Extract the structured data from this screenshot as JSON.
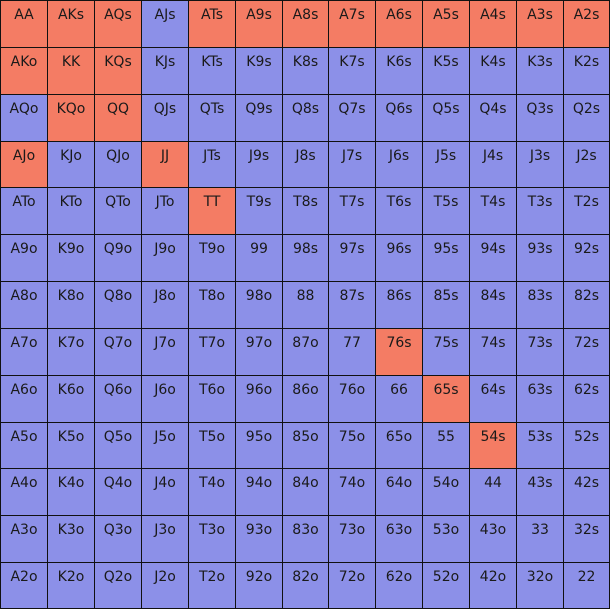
{
  "grid": {
    "rows": [
      [
        {
          "label": "AA",
          "color": "#f47c64"
        },
        {
          "label": "AKs",
          "color": "#f47c64"
        },
        {
          "label": "AQs",
          "color": "#f47c64"
        },
        {
          "label": "AJs",
          "color": "#8c90e8"
        },
        {
          "label": "ATs",
          "color": "#f47c64"
        },
        {
          "label": "A9s",
          "color": "#f47c64"
        },
        {
          "label": "A8s",
          "color": "#f47c64"
        },
        {
          "label": "A7s",
          "color": "#f47c64"
        },
        {
          "label": "A6s",
          "color": "#f47c64"
        },
        {
          "label": "A5s",
          "color": "#f47c64"
        },
        {
          "label": "A4s",
          "color": "#f47c64"
        },
        {
          "label": "A3s",
          "color": "#f47c64"
        },
        {
          "label": "A2s",
          "color": "#f47c64"
        }
      ],
      [
        {
          "label": "AKo",
          "color": "#f47c64"
        },
        {
          "label": "KK",
          "color": "#f47c64"
        },
        {
          "label": "KQs",
          "color": "#f47c64"
        },
        {
          "label": "KJs",
          "color": "#8c90e8"
        },
        {
          "label": "KTs",
          "color": "#8c90e8"
        },
        {
          "label": "K9s",
          "color": "#8c90e8"
        },
        {
          "label": "K8s",
          "color": "#8c90e8"
        },
        {
          "label": "K7s",
          "color": "#8c90e8"
        },
        {
          "label": "K6s",
          "color": "#8c90e8"
        },
        {
          "label": "K5s",
          "color": "#8c90e8"
        },
        {
          "label": "K4s",
          "color": "#8c90e8"
        },
        {
          "label": "K3s",
          "color": "#8c90e8"
        },
        {
          "label": "K2s",
          "color": "#8c90e8"
        }
      ],
      [
        {
          "label": "AQo",
          "color": "#8c90e8"
        },
        {
          "label": "KQo",
          "color": "#f47c64"
        },
        {
          "label": "QQ",
          "color": "#f47c64"
        },
        {
          "label": "QJs",
          "color": "#8c90e8"
        },
        {
          "label": "QTs",
          "color": "#8c90e8"
        },
        {
          "label": "Q9s",
          "color": "#8c90e8"
        },
        {
          "label": "Q8s",
          "color": "#8c90e8"
        },
        {
          "label": "Q7s",
          "color": "#8c90e8"
        },
        {
          "label": "Q6s",
          "color": "#8c90e8"
        },
        {
          "label": "Q5s",
          "color": "#8c90e8"
        },
        {
          "label": "Q4s",
          "color": "#8c90e8"
        },
        {
          "label": "Q3s",
          "color": "#8c90e8"
        },
        {
          "label": "Q2s",
          "color": "#8c90e8"
        }
      ],
      [
        {
          "label": "AJo",
          "color": "#f47c64"
        },
        {
          "label": "KJo",
          "color": "#8c90e8"
        },
        {
          "label": "QJo",
          "color": "#8c90e8"
        },
        {
          "label": "JJ",
          "color": "#f47c64"
        },
        {
          "label": "JTs",
          "color": "#8c90e8"
        },
        {
          "label": "J9s",
          "color": "#8c90e8"
        },
        {
          "label": "J8s",
          "color": "#8c90e8"
        },
        {
          "label": "J7s",
          "color": "#8c90e8"
        },
        {
          "label": "J6s",
          "color": "#8c90e8"
        },
        {
          "label": "J5s",
          "color": "#8c90e8"
        },
        {
          "label": "J4s",
          "color": "#8c90e8"
        },
        {
          "label": "J3s",
          "color": "#8c90e8"
        },
        {
          "label": "J2s",
          "color": "#8c90e8"
        }
      ],
      [
        {
          "label": "ATo",
          "color": "#8c90e8"
        },
        {
          "label": "KTo",
          "color": "#8c90e8"
        },
        {
          "label": "QTo",
          "color": "#8c90e8"
        },
        {
          "label": "JTo",
          "color": "#8c90e8"
        },
        {
          "label": "TT",
          "color": "#f47c64"
        },
        {
          "label": "T9s",
          "color": "#8c90e8"
        },
        {
          "label": "T8s",
          "color": "#8c90e8"
        },
        {
          "label": "T7s",
          "color": "#8c90e8"
        },
        {
          "label": "T6s",
          "color": "#8c90e8"
        },
        {
          "label": "T5s",
          "color": "#8c90e8"
        },
        {
          "label": "T4s",
          "color": "#8c90e8"
        },
        {
          "label": "T3s",
          "color": "#8c90e8"
        },
        {
          "label": "T2s",
          "color": "#8c90e8"
        }
      ],
      [
        {
          "label": "A9o",
          "color": "#8c90e8"
        },
        {
          "label": "K9o",
          "color": "#8c90e8"
        },
        {
          "label": "Q9o",
          "color": "#8c90e8"
        },
        {
          "label": "J9o",
          "color": "#8c90e8"
        },
        {
          "label": "T9o",
          "color": "#8c90e8"
        },
        {
          "label": "99",
          "color": "#8c90e8"
        },
        {
          "label": "98s",
          "color": "#8c90e8"
        },
        {
          "label": "97s",
          "color": "#8c90e8"
        },
        {
          "label": "96s",
          "color": "#8c90e8"
        },
        {
          "label": "95s",
          "color": "#8c90e8"
        },
        {
          "label": "94s",
          "color": "#8c90e8"
        },
        {
          "label": "93s",
          "color": "#8c90e8"
        },
        {
          "label": "92s",
          "color": "#8c90e8"
        }
      ],
      [
        {
          "label": "A8o",
          "color": "#8c90e8"
        },
        {
          "label": "K8o",
          "color": "#8c90e8"
        },
        {
          "label": "Q8o",
          "color": "#8c90e8"
        },
        {
          "label": "J8o",
          "color": "#8c90e8"
        },
        {
          "label": "T8o",
          "color": "#8c90e8"
        },
        {
          "label": "98o",
          "color": "#8c90e8"
        },
        {
          "label": "88",
          "color": "#8c90e8"
        },
        {
          "label": "87s",
          "color": "#8c90e8"
        },
        {
          "label": "86s",
          "color": "#8c90e8"
        },
        {
          "label": "85s",
          "color": "#8c90e8"
        },
        {
          "label": "84s",
          "color": "#8c90e8"
        },
        {
          "label": "83s",
          "color": "#8c90e8"
        },
        {
          "label": "82s",
          "color": "#8c90e8"
        }
      ],
      [
        {
          "label": "A7o",
          "color": "#8c90e8"
        },
        {
          "label": "K7o",
          "color": "#8c90e8"
        },
        {
          "label": "Q7o",
          "color": "#8c90e8"
        },
        {
          "label": "J7o",
          "color": "#8c90e8"
        },
        {
          "label": "T7o",
          "color": "#8c90e8"
        },
        {
          "label": "97o",
          "color": "#8c90e8"
        },
        {
          "label": "87o",
          "color": "#8c90e8"
        },
        {
          "label": "77",
          "color": "#8c90e8"
        },
        {
          "label": "76s",
          "color": "#f47c64"
        },
        {
          "label": "75s",
          "color": "#8c90e8"
        },
        {
          "label": "74s",
          "color": "#8c90e8"
        },
        {
          "label": "73s",
          "color": "#8c90e8"
        },
        {
          "label": "72s",
          "color": "#8c90e8"
        }
      ],
      [
        {
          "label": "A6o",
          "color": "#8c90e8"
        },
        {
          "label": "K6o",
          "color": "#8c90e8"
        },
        {
          "label": "Q6o",
          "color": "#8c90e8"
        },
        {
          "label": "J6o",
          "color": "#8c90e8"
        },
        {
          "label": "T6o",
          "color": "#8c90e8"
        },
        {
          "label": "96o",
          "color": "#8c90e8"
        },
        {
          "label": "86o",
          "color": "#8c90e8"
        },
        {
          "label": "76o",
          "color": "#8c90e8"
        },
        {
          "label": "66",
          "color": "#8c90e8"
        },
        {
          "label": "65s",
          "color": "#f47c64"
        },
        {
          "label": "64s",
          "color": "#8c90e8"
        },
        {
          "label": "63s",
          "color": "#8c90e8"
        },
        {
          "label": "62s",
          "color": "#8c90e8"
        }
      ],
      [
        {
          "label": "A5o",
          "color": "#8c90e8"
        },
        {
          "label": "K5o",
          "color": "#8c90e8"
        },
        {
          "label": "Q5o",
          "color": "#8c90e8"
        },
        {
          "label": "J5o",
          "color": "#8c90e8"
        },
        {
          "label": "T5o",
          "color": "#8c90e8"
        },
        {
          "label": "95o",
          "color": "#8c90e8"
        },
        {
          "label": "85o",
          "color": "#8c90e8"
        },
        {
          "label": "75o",
          "color": "#8c90e8"
        },
        {
          "label": "65o",
          "color": "#8c90e8"
        },
        {
          "label": "55",
          "color": "#8c90e8"
        },
        {
          "label": "54s",
          "color": "#f47c64"
        },
        {
          "label": "53s",
          "color": "#8c90e8"
        },
        {
          "label": "52s",
          "color": "#8c90e8"
        }
      ],
      [
        {
          "label": "A4o",
          "color": "#8c90e8"
        },
        {
          "label": "K4o",
          "color": "#8c90e8"
        },
        {
          "label": "Q4o",
          "color": "#8c90e8"
        },
        {
          "label": "J4o",
          "color": "#8c90e8"
        },
        {
          "label": "T4o",
          "color": "#8c90e8"
        },
        {
          "label": "94o",
          "color": "#8c90e8"
        },
        {
          "label": "84o",
          "color": "#8c90e8"
        },
        {
          "label": "74o",
          "color": "#8c90e8"
        },
        {
          "label": "64o",
          "color": "#8c90e8"
        },
        {
          "label": "54o",
          "color": "#8c90e8"
        },
        {
          "label": "44",
          "color": "#8c90e8"
        },
        {
          "label": "43s",
          "color": "#8c90e8"
        },
        {
          "label": "42s",
          "color": "#8c90e8"
        }
      ],
      [
        {
          "label": "A3o",
          "color": "#8c90e8"
        },
        {
          "label": "K3o",
          "color": "#8c90e8"
        },
        {
          "label": "Q3o",
          "color": "#8c90e8"
        },
        {
          "label": "J3o",
          "color": "#8c90e8"
        },
        {
          "label": "T3o",
          "color": "#8c90e8"
        },
        {
          "label": "93o",
          "color": "#8c90e8"
        },
        {
          "label": "83o",
          "color": "#8c90e8"
        },
        {
          "label": "73o",
          "color": "#8c90e8"
        },
        {
          "label": "63o",
          "color": "#8c90e8"
        },
        {
          "label": "53o",
          "color": "#8c90e8"
        },
        {
          "label": "43o",
          "color": "#8c90e8"
        },
        {
          "label": "33",
          "color": "#8c90e8"
        },
        {
          "label": "32s",
          "color": "#8c90e8"
        }
      ],
      [
        {
          "label": "A2o",
          "color": "#8c90e8"
        },
        {
          "label": "K2o",
          "color": "#8c90e8"
        },
        {
          "label": "Q2o",
          "color": "#8c90e8"
        },
        {
          "label": "J2o",
          "color": "#8c90e8"
        },
        {
          "label": "T2o",
          "color": "#8c90e8"
        },
        {
          "label": "92o",
          "color": "#8c90e8"
        },
        {
          "label": "82o",
          "color": "#8c90e8"
        },
        {
          "label": "72o",
          "color": "#8c90e8"
        },
        {
          "label": "62o",
          "color": "#8c90e8"
        },
        {
          "label": "52o",
          "color": "#8c90e8"
        },
        {
          "label": "42o",
          "color": "#8c90e8"
        },
        {
          "label": "32o",
          "color": "#8c90e8"
        },
        {
          "label": "22",
          "color": "#8c90e8"
        }
      ]
    ]
  }
}
